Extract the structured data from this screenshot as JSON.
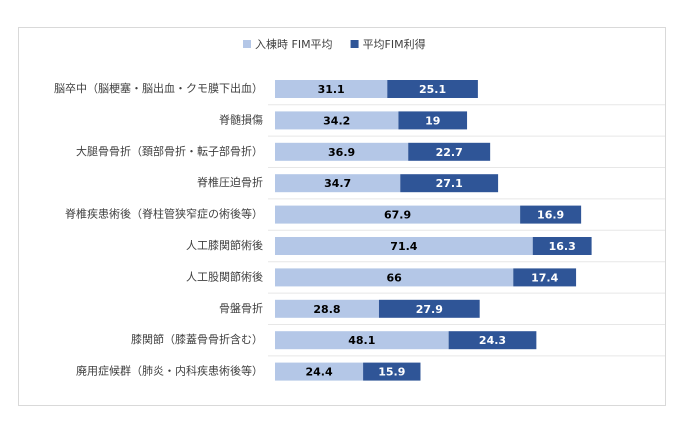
{
  "chart_data": {
    "type": "stacked-bar-horizontal",
    "categories": [
      "脳卒中（脳梗塞・脳出血・クモ膜下出血）",
      "脊髄損傷",
      "大腿骨骨折（頚部骨折・転子部骨折）",
      "脊椎圧迫骨折",
      "脊椎疾患術後（脊柱管狭窄症の術後等）",
      "人工膝関節術後",
      "人工股関節術後",
      "骨盤骨折",
      "膝関節（膝蓋骨骨折含む）",
      "廃用症候群（肺炎・内科疾患術後等）"
    ],
    "series": [
      {
        "name": "入棟時 FIM平均",
        "color": "#b4c7e7",
        "values": [
          31.1,
          34.2,
          36.9,
          34.7,
          67.9,
          71.4,
          66,
          28.8,
          48.1,
          24.4
        ]
      },
      {
        "name": "平均FIM利得",
        "color": "#2f5597",
        "values": [
          25.1,
          19,
          22.7,
          27.1,
          16.9,
          16.3,
          17.4,
          27.9,
          24.3,
          15.9
        ]
      }
    ],
    "legend": "top"
  }
}
